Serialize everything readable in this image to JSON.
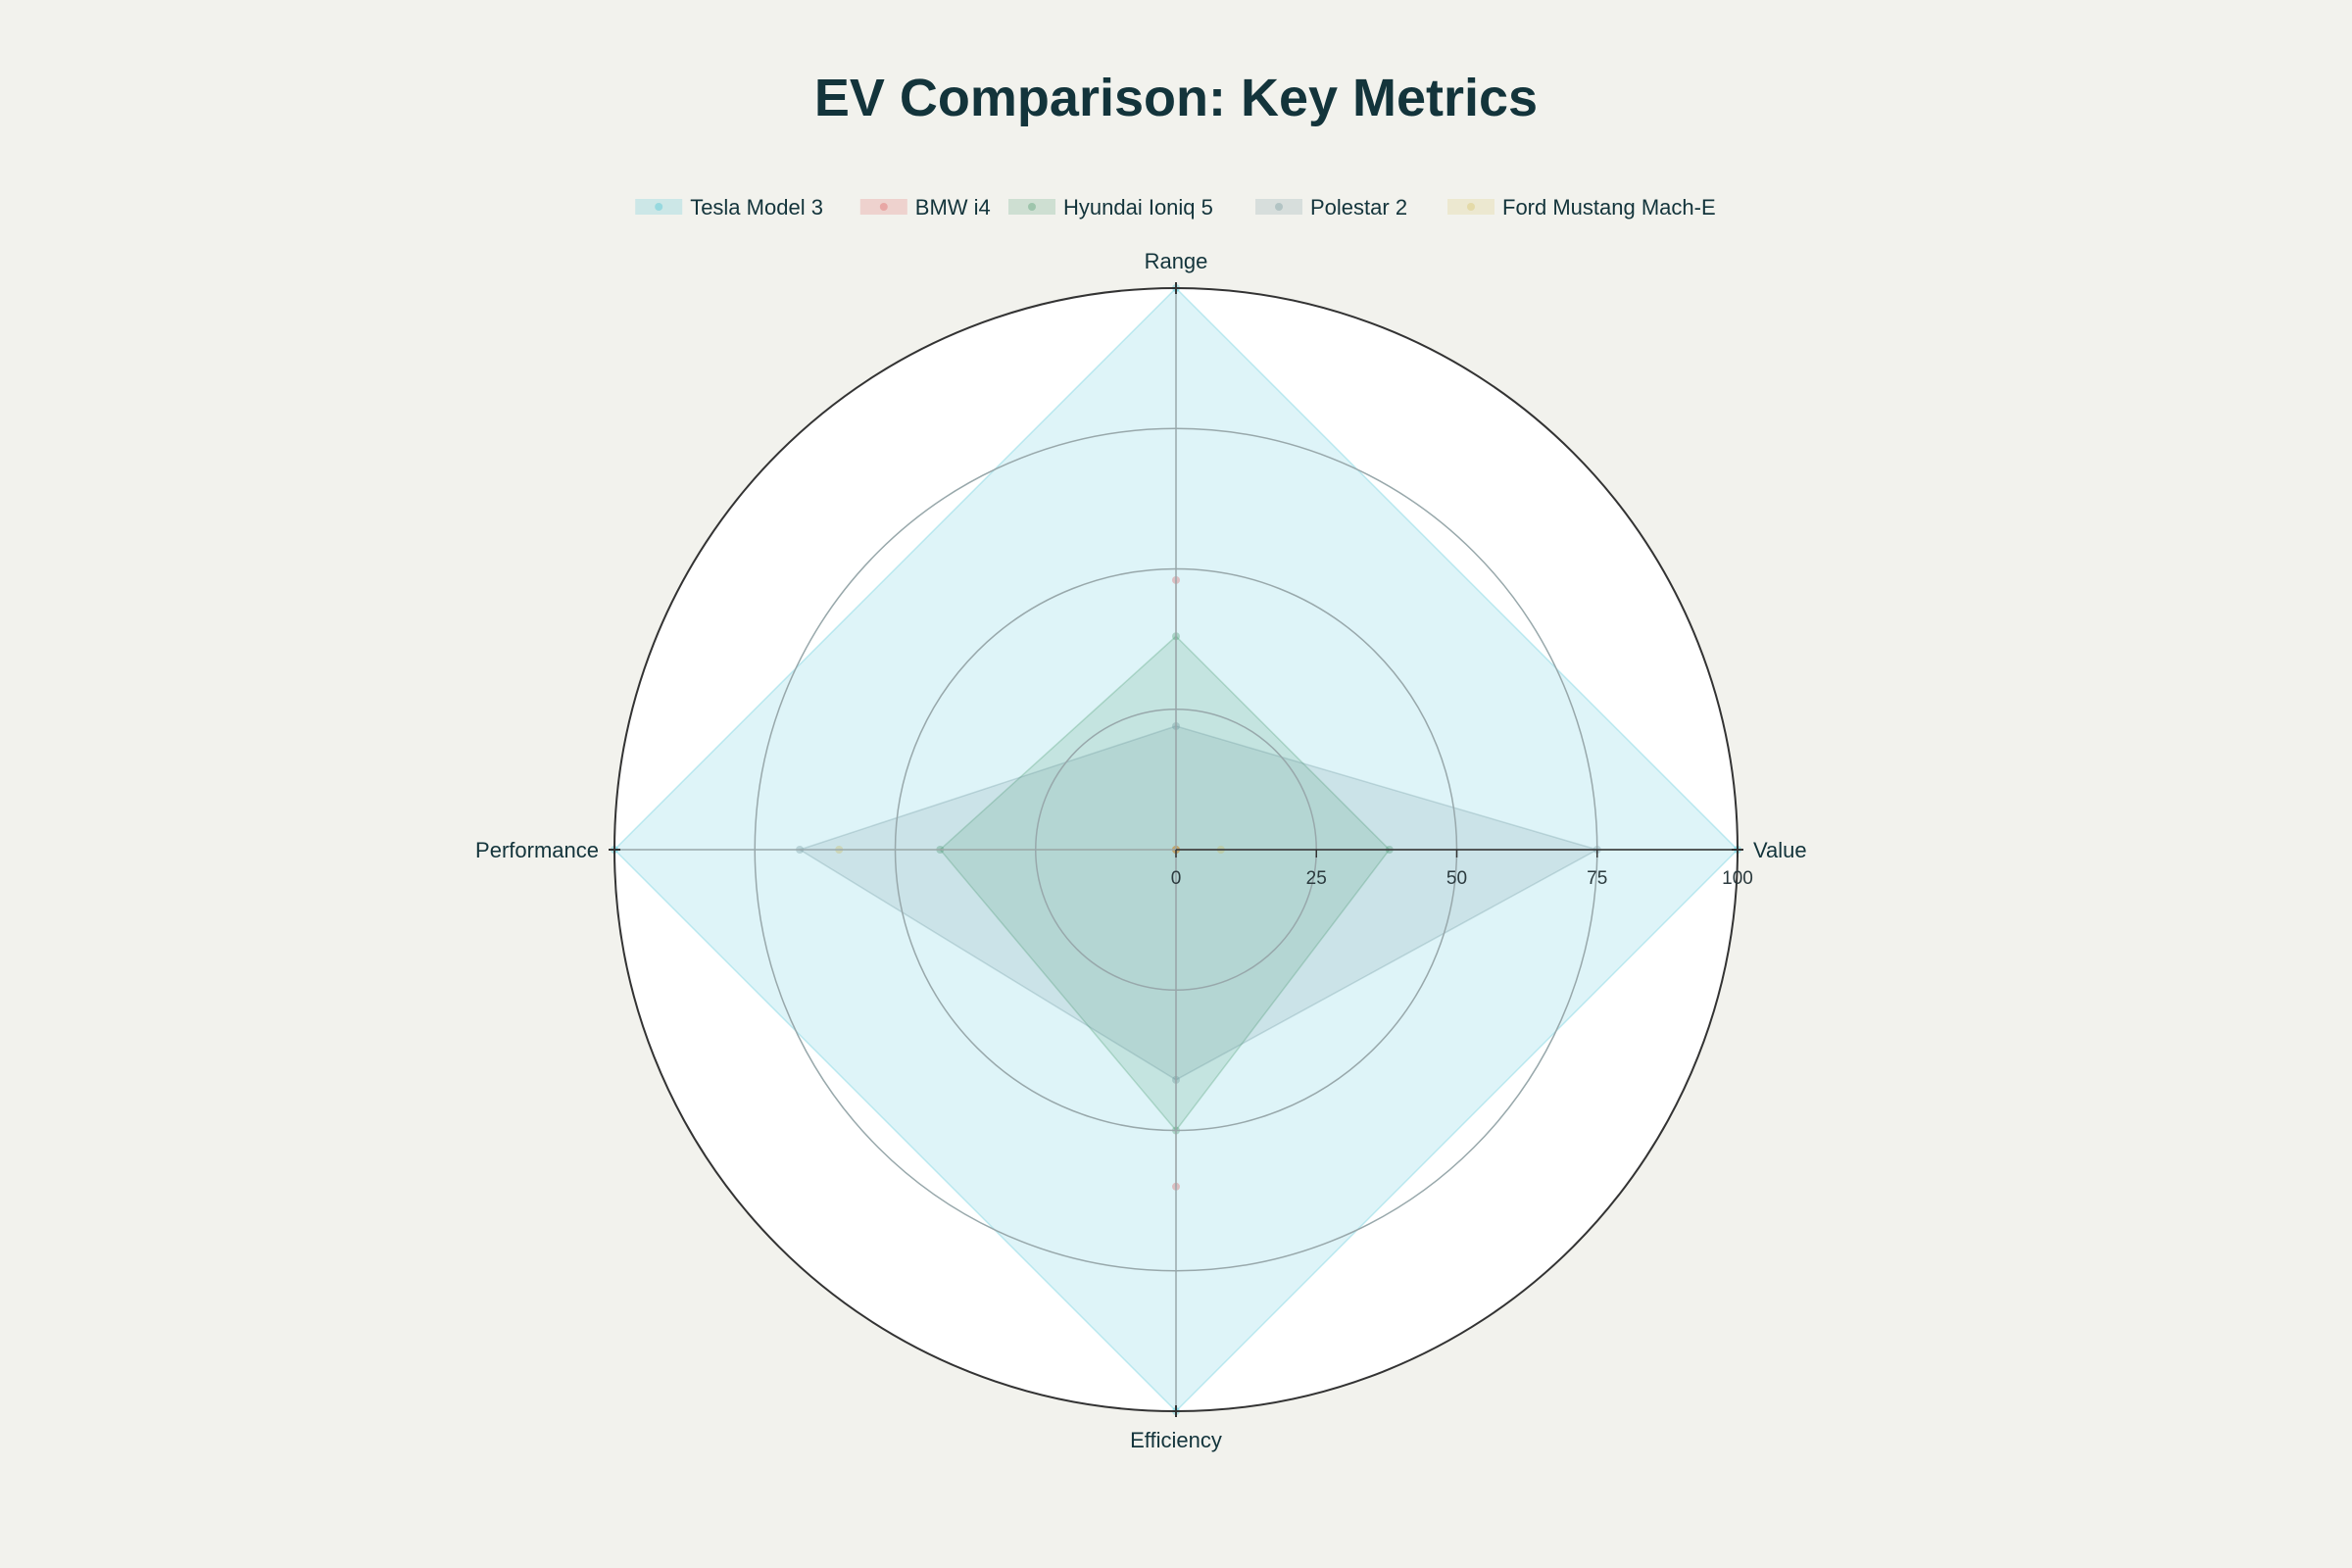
{
  "chart_data": {
    "type": "radar",
    "title": "EV Comparison: Key Metrics",
    "axes": [
      "Range",
      "Value",
      "Efficiency",
      "Performance"
    ],
    "radial_ticks": [
      0,
      25,
      50,
      75,
      100
    ],
    "rlim": [
      0,
      100
    ],
    "legend_position": "top",
    "grid": true,
    "series": [
      {
        "name": "Tesla Model 3",
        "color": "#1fb8cd",
        "values": [
          100,
          100,
          100,
          100
        ]
      },
      {
        "name": "BMW i4",
        "color": "#db4545",
        "values": [
          48,
          0,
          60,
          0
        ]
      },
      {
        "name": "Hyundai Ioniq 5",
        "color": "#2e8b57",
        "values": [
          38,
          38,
          50,
          42
        ]
      },
      {
        "name": "Polestar 2",
        "color": "#5d878f",
        "values": [
          22,
          75,
          41,
          67
        ]
      },
      {
        "name": "Ford Mustang Mach-E",
        "color": "#d2ba4c",
        "values": [
          0,
          8,
          0,
          60
        ]
      }
    ]
  },
  "colors": {
    "background": "#f2f2ed",
    "plot_background": "#ffffff",
    "title": "#13343b",
    "grid": "#98a8ab",
    "outer_ring": "#333333"
  }
}
